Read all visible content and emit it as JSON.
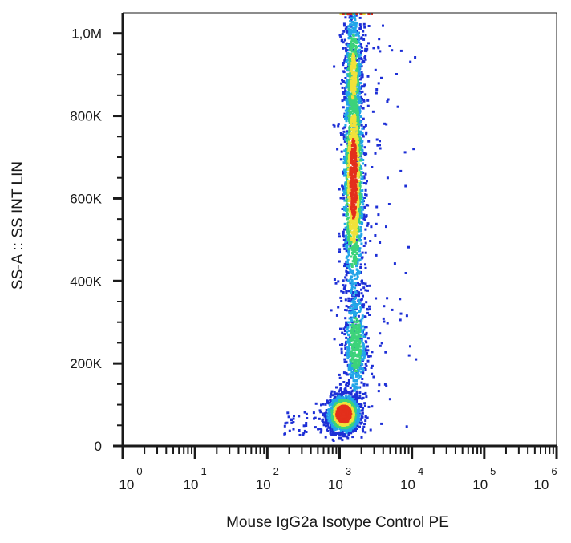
{
  "chart_data": {
    "type": "scatter",
    "style": "density dot plot (flow cytometry), color-coded by point density: blue (low) to red (high)",
    "xlabel": "Mouse IgG2a Isotype Control PE",
    "ylabel": "SS-A :: SS INT LIN",
    "x_scale": "log",
    "y_scale": "linear",
    "xlim": [
      1,
      1000000
    ],
    "ylim": [
      0,
      1050000
    ],
    "x_ticks": [
      {
        "value": 1,
        "base": "10",
        "exp": "0"
      },
      {
        "value": 10,
        "base": "10",
        "exp": "1"
      },
      {
        "value": 100,
        "base": "10",
        "exp": "2"
      },
      {
        "value": 1000,
        "base": "10",
        "exp": "3"
      },
      {
        "value": 10000,
        "base": "10",
        "exp": "4"
      },
      {
        "value": 100000,
        "base": "10",
        "exp": "5"
      },
      {
        "value": 1000000,
        "base": "10",
        "exp": "6"
      }
    ],
    "y_ticks": [
      {
        "value": 0,
        "label": "0"
      },
      {
        "value": 200000,
        "label": "200K"
      },
      {
        "value": 400000,
        "label": "400K"
      },
      {
        "value": 600000,
        "label": "600K"
      },
      {
        "value": 800000,
        "label": "800K"
      },
      {
        "value": 1000000,
        "label": "1,0M"
      }
    ],
    "populations": [
      {
        "x_center": 1100,
        "y_center": 80000,
        "density": "high"
      },
      {
        "x_center": 1600,
        "y_center": 250000,
        "density": "medium"
      },
      {
        "x_center": 1500,
        "y_center": 650000,
        "density": "high"
      },
      {
        "x_center": 1500,
        "y_center": 900000,
        "density": "medium"
      }
    ],
    "grid": false,
    "legend": "none"
  },
  "colors": {
    "low": "#1d2fd6",
    "mid_low": "#22a6e8",
    "mid": "#3cd37a",
    "mid_high": "#f0e23a",
    "high": "#e3301c",
    "axis": "#1a1a1a"
  }
}
